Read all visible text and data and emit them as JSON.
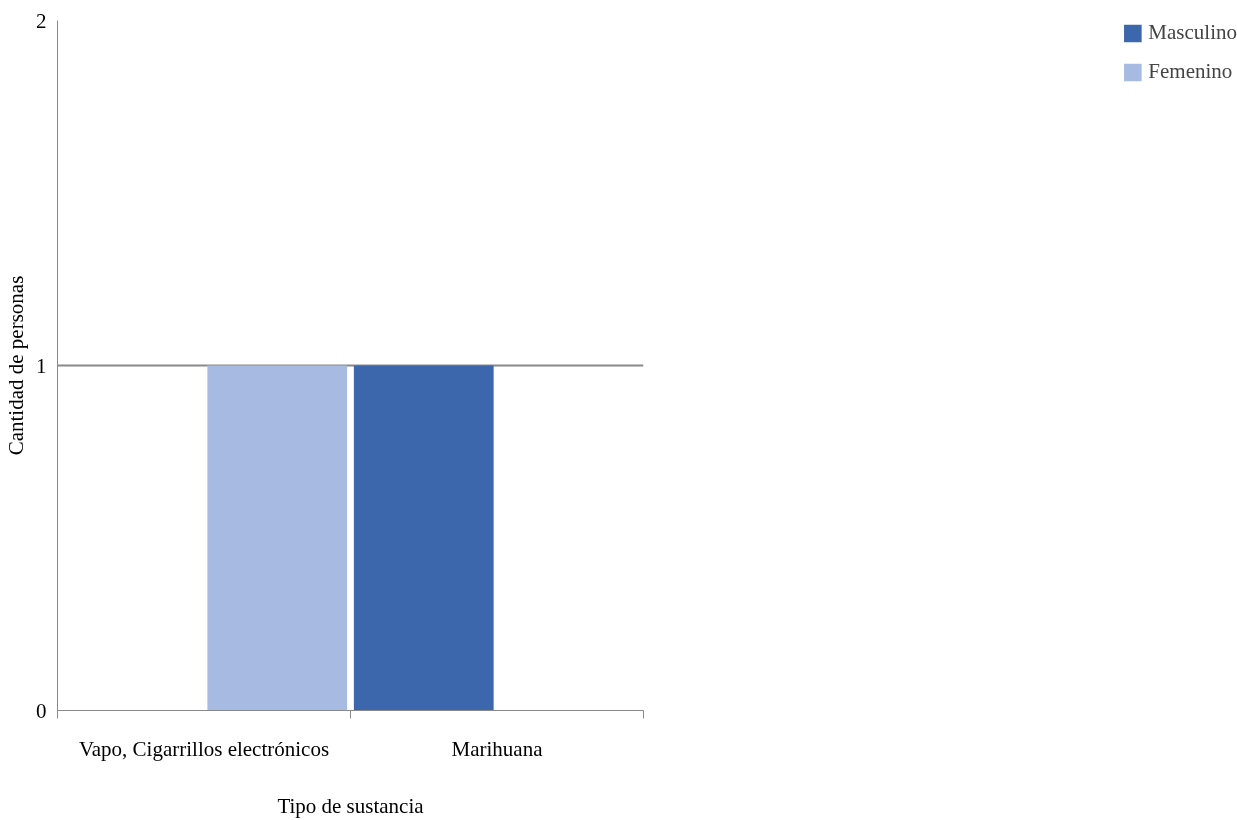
{
  "chart_data": {
    "type": "bar",
    "xlabel": "Tipo de sustancia",
    "ylabel": "Cantidad de personas",
    "categories": [
      "Vapo, Cigarrillos electrónicos",
      "Marihuana"
    ],
    "series": [
      {
        "name": "Masculino",
        "color": "#3c67ad",
        "values": [
          0,
          1
        ]
      },
      {
        "name": "Femenino",
        "color": "#a7bbe2",
        "values": [
          1,
          0
        ]
      }
    ],
    "ylim": [
      0,
      2
    ],
    "yticks": [
      0,
      1,
      2
    ],
    "grid": "y",
    "legend": "right"
  }
}
